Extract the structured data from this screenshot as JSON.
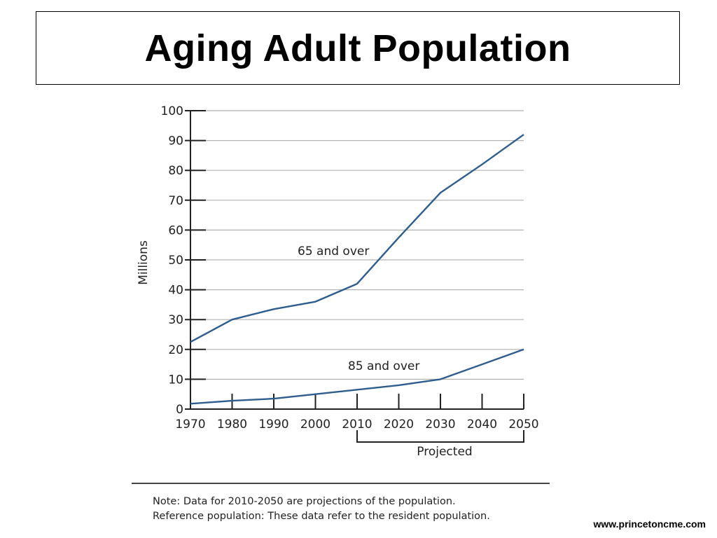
{
  "slide": {
    "title": "Aging Adult Population",
    "notes": [
      "Note: Data for 2010-2050 are projections of the population.",
      "Reference population: These data refer to the resident population."
    ],
    "footer_url": "www.princetoncme.com"
  },
  "chart_data": {
    "type": "line",
    "title": "",
    "xlabel": "",
    "ylabel": "Millions",
    "x": [
      1970,
      1980,
      1990,
      2000,
      2010,
      2020,
      2030,
      2040,
      2050
    ],
    "xlim": [
      1970,
      2050
    ],
    "ylim": [
      0,
      100
    ],
    "yticks": [
      0,
      10,
      20,
      30,
      40,
      50,
      60,
      70,
      80,
      90,
      100
    ],
    "grid": true,
    "series": [
      {
        "name": "65 and over",
        "values": [
          22.5,
          30,
          33.5,
          36,
          42,
          57.5,
          72.5,
          82,
          92
        ],
        "color": "#2e5d8e"
      },
      {
        "name": "85 and over",
        "values": [
          1.8,
          2.8,
          3.5,
          5,
          6.5,
          8,
          10,
          15,
          20
        ],
        "color": "#2e5d8e"
      }
    ],
    "annotation": {
      "text": "Projected",
      "from": 2010,
      "to": 2050
    }
  }
}
